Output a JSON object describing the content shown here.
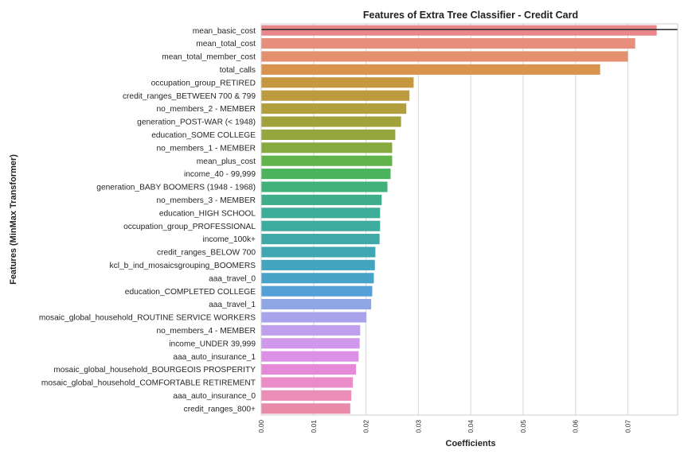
{
  "chart_data": {
    "type": "bar",
    "orientation": "horizontal",
    "title": "Features of Extra Tree Classifier - Credit Card",
    "xlabel": "Coefficients",
    "ylabel": "Features (MinMax Transformer)",
    "xlim": [
      0,
      0.0795
    ],
    "xticks": [
      "0.00",
      "0.01",
      "0.02",
      "0.03",
      "0.04",
      "0.05",
      "0.06",
      "0.07"
    ],
    "grid": "vertical",
    "categories": [
      "mean_basic_cost",
      "mean_total_cost",
      "mean_total_member_cost",
      "total_calls",
      "occupation_group_RETIRED",
      "credit_ranges_BETWEEN 700 & 799",
      "no_members_2 - MEMBER",
      "generation_POST-WAR (< 1948)",
      "education_SOME COLLEGE",
      "no_members_1 - MEMBER",
      "mean_plus_cost",
      "income_40 - 99,999",
      "generation_BABY BOOMERS (1948 - 1968)",
      "no_members_3 - MEMBER",
      "education_HIGH SCHOOL",
      "occupation_group_PROFESSIONAL",
      "income_100k+",
      "credit_ranges_BELOW 700",
      "kcl_b_ind_mosaicsgrouping_BOOMERS",
      "aaa_travel_0",
      "education_COMPLETED COLLEGE",
      "aaa_travel_1",
      "mosaic_global_household_ROUTINE SERVICE WORKERS",
      "no_members_4 - MEMBER",
      "income_UNDER 39,999",
      "aaa_auto_insurance_1",
      "mosaic_global_household_BOURGEOIS PROSPERITY",
      "mosaic_global_household_COMFORTABLE RETIREMENT",
      "aaa_auto_insurance_0",
      "credit_ranges_800+"
    ],
    "values": [
      0.0755,
      0.0714,
      0.07,
      0.0647,
      0.0291,
      0.0283,
      0.0277,
      0.0267,
      0.0256,
      0.025,
      0.025,
      0.0247,
      0.0241,
      0.023,
      0.0227,
      0.0227,
      0.0226,
      0.0218,
      0.0217,
      0.0215,
      0.0212,
      0.021,
      0.0201,
      0.0189,
      0.0188,
      0.0186,
      0.0181,
      0.0175,
      0.0172,
      0.017
    ],
    "colors": [
      "#e8868a",
      "#e88e7c",
      "#e3906e",
      "#d9934e",
      "#c5983f",
      "#bb9b3d",
      "#b09f3c",
      "#a2a23c",
      "#95a63d",
      "#87aa3f",
      "#61b34b",
      "#4ab35c",
      "#42b07a",
      "#3eae8a",
      "#3dad97",
      "#3eab9f",
      "#3fa9a8",
      "#40a7b2",
      "#43a5bd",
      "#48a3c8",
      "#55a0d6",
      "#8ea6e6",
      "#a9a3ec",
      "#bea0ec",
      "#cf98ea",
      "#dc90e6",
      "#e68ad8",
      "#eb8bc7",
      "#ec8db8",
      "#ea8aa9"
    ],
    "annotation_line_color": "#333333"
  }
}
